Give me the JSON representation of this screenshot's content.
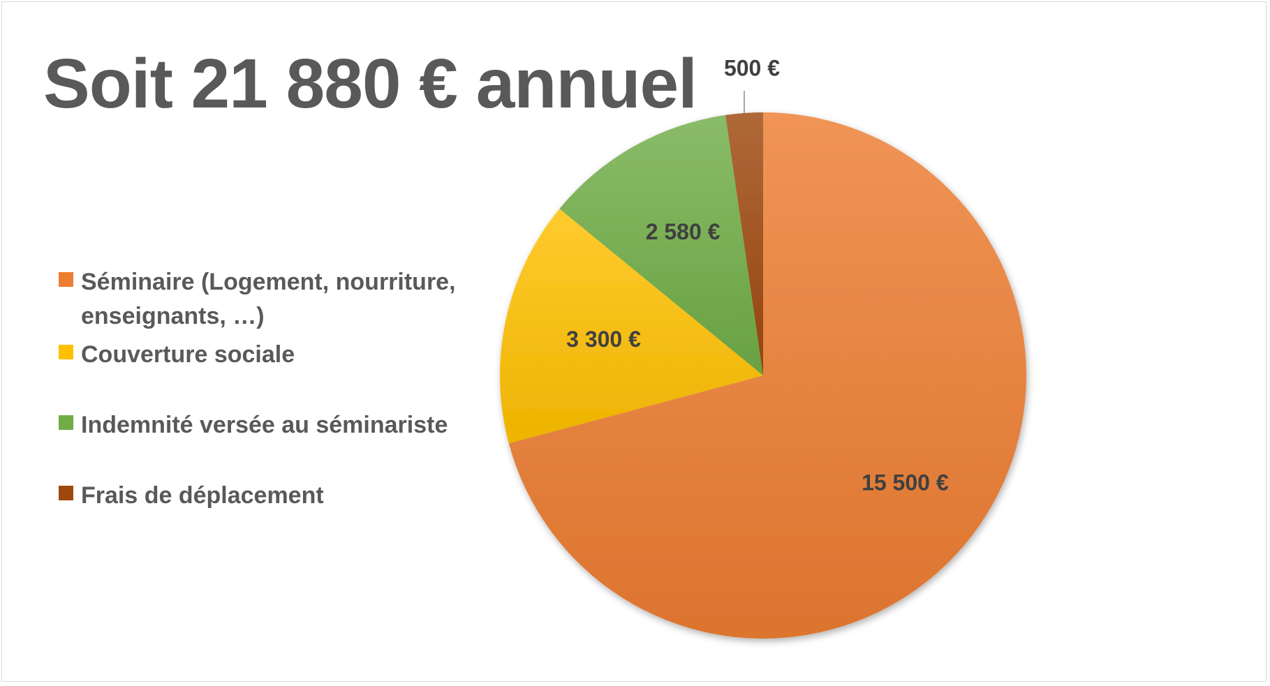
{
  "title": "Soit 21 880 € annuel",
  "chart_data": {
    "type": "pie",
    "categories": [
      "Séminaire (Logement, nourriture, enseignants, …)",
      "Couverture sociale",
      "Indemnité versée au séminariste",
      "Frais de déplacement"
    ],
    "values": [
      15500,
      3300,
      2580,
      500
    ],
    "data_labels": [
      "15 500 €",
      "3 300 €",
      "2 580 €",
      "500 €"
    ],
    "colors": [
      "#ed7d31",
      "#ffc000",
      "#70ad47",
      "#9e480e"
    ],
    "legend_position": "left",
    "start_angle": "top, clockwise"
  },
  "legend": {
    "items": [
      {
        "label_line1": "Séminaire (Logement, nourriture,",
        "label_line2": "enseignants, …)",
        "color": "#ed7d31"
      },
      {
        "label_line1": "Couverture sociale",
        "color": "#ffc000"
      },
      {
        "label_line1": "Indemnité versée au séminariste",
        "color": "#70ad47"
      },
      {
        "label_line1": "Frais de déplacement",
        "color": "#9e480e"
      }
    ]
  }
}
